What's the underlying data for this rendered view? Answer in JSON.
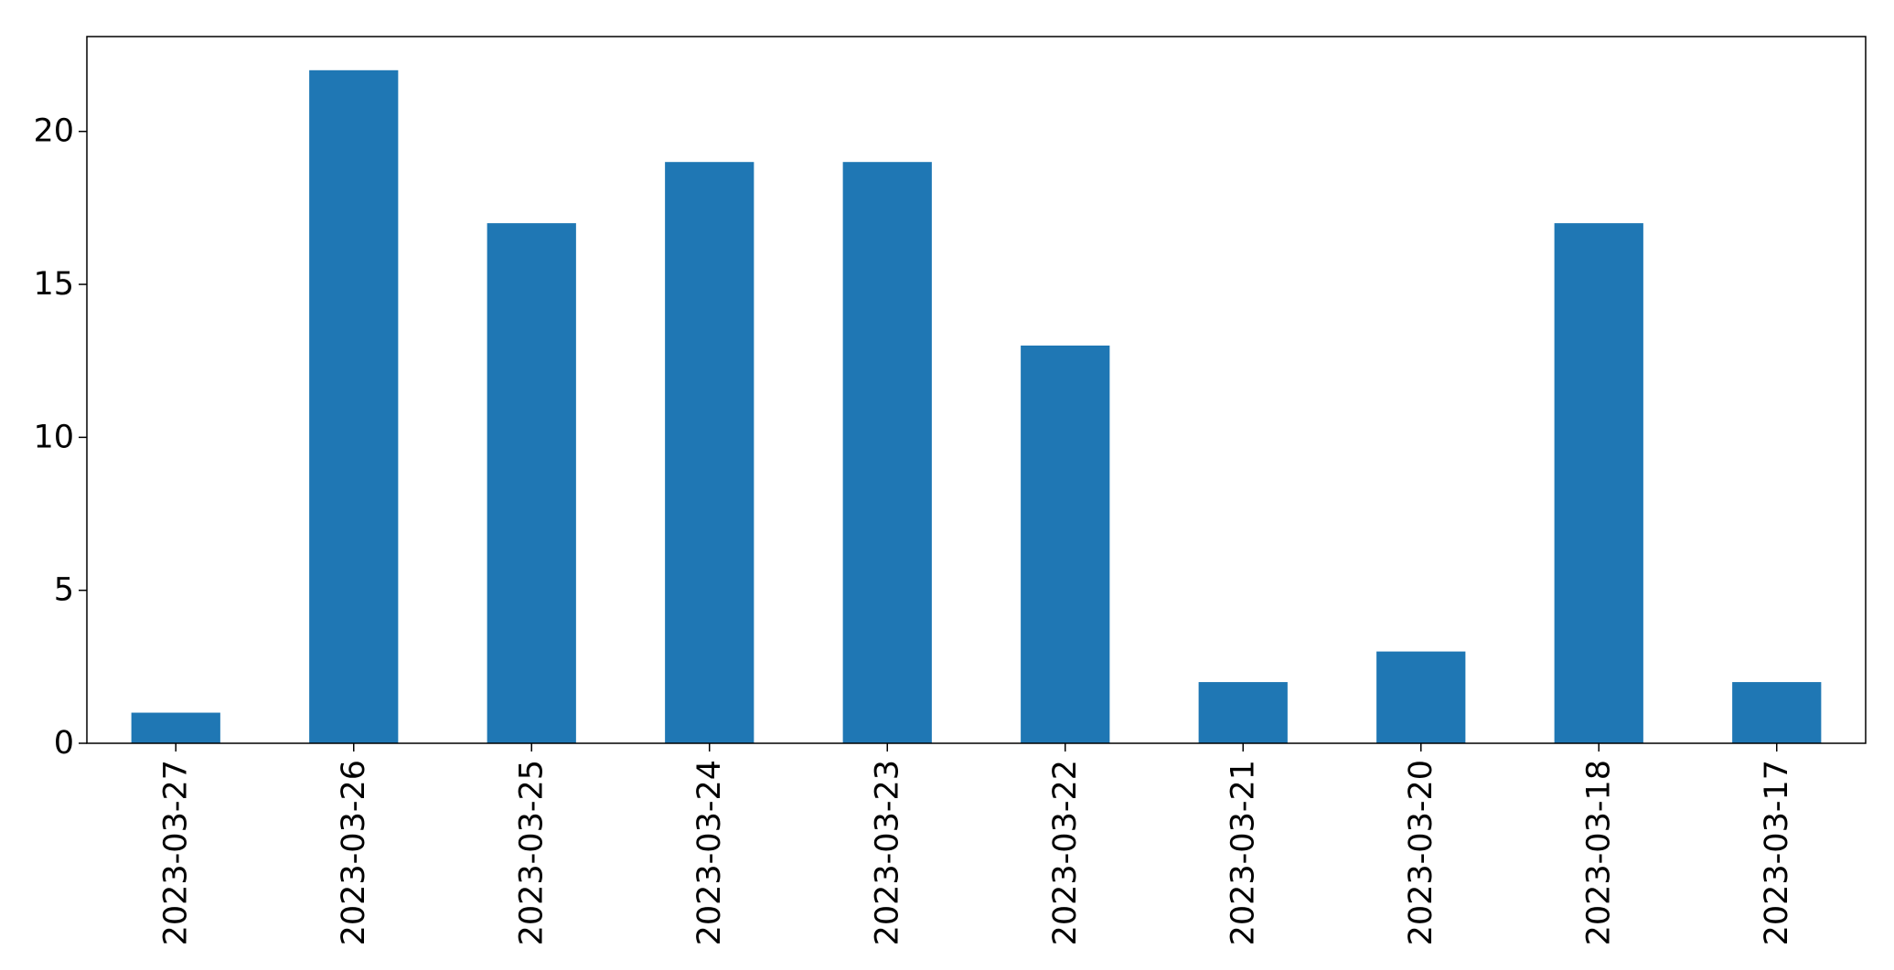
{
  "chart_data": {
    "type": "bar",
    "title": "",
    "xlabel": "",
    "ylabel": "",
    "categories": [
      "2023-03-27",
      "2023-03-26",
      "2023-03-25",
      "2023-03-24",
      "2023-03-23",
      "2023-03-22",
      "2023-03-21",
      "2023-03-20",
      "2023-03-18",
      "2023-03-17"
    ],
    "values": [
      1,
      22,
      17,
      19,
      19,
      13,
      2,
      3,
      17,
      2
    ],
    "ylim": [
      0,
      23.1
    ],
    "yticks": [
      0,
      5,
      10,
      15,
      20
    ],
    "grid": false,
    "legend": "none",
    "bar_color": "#1f77b4"
  }
}
